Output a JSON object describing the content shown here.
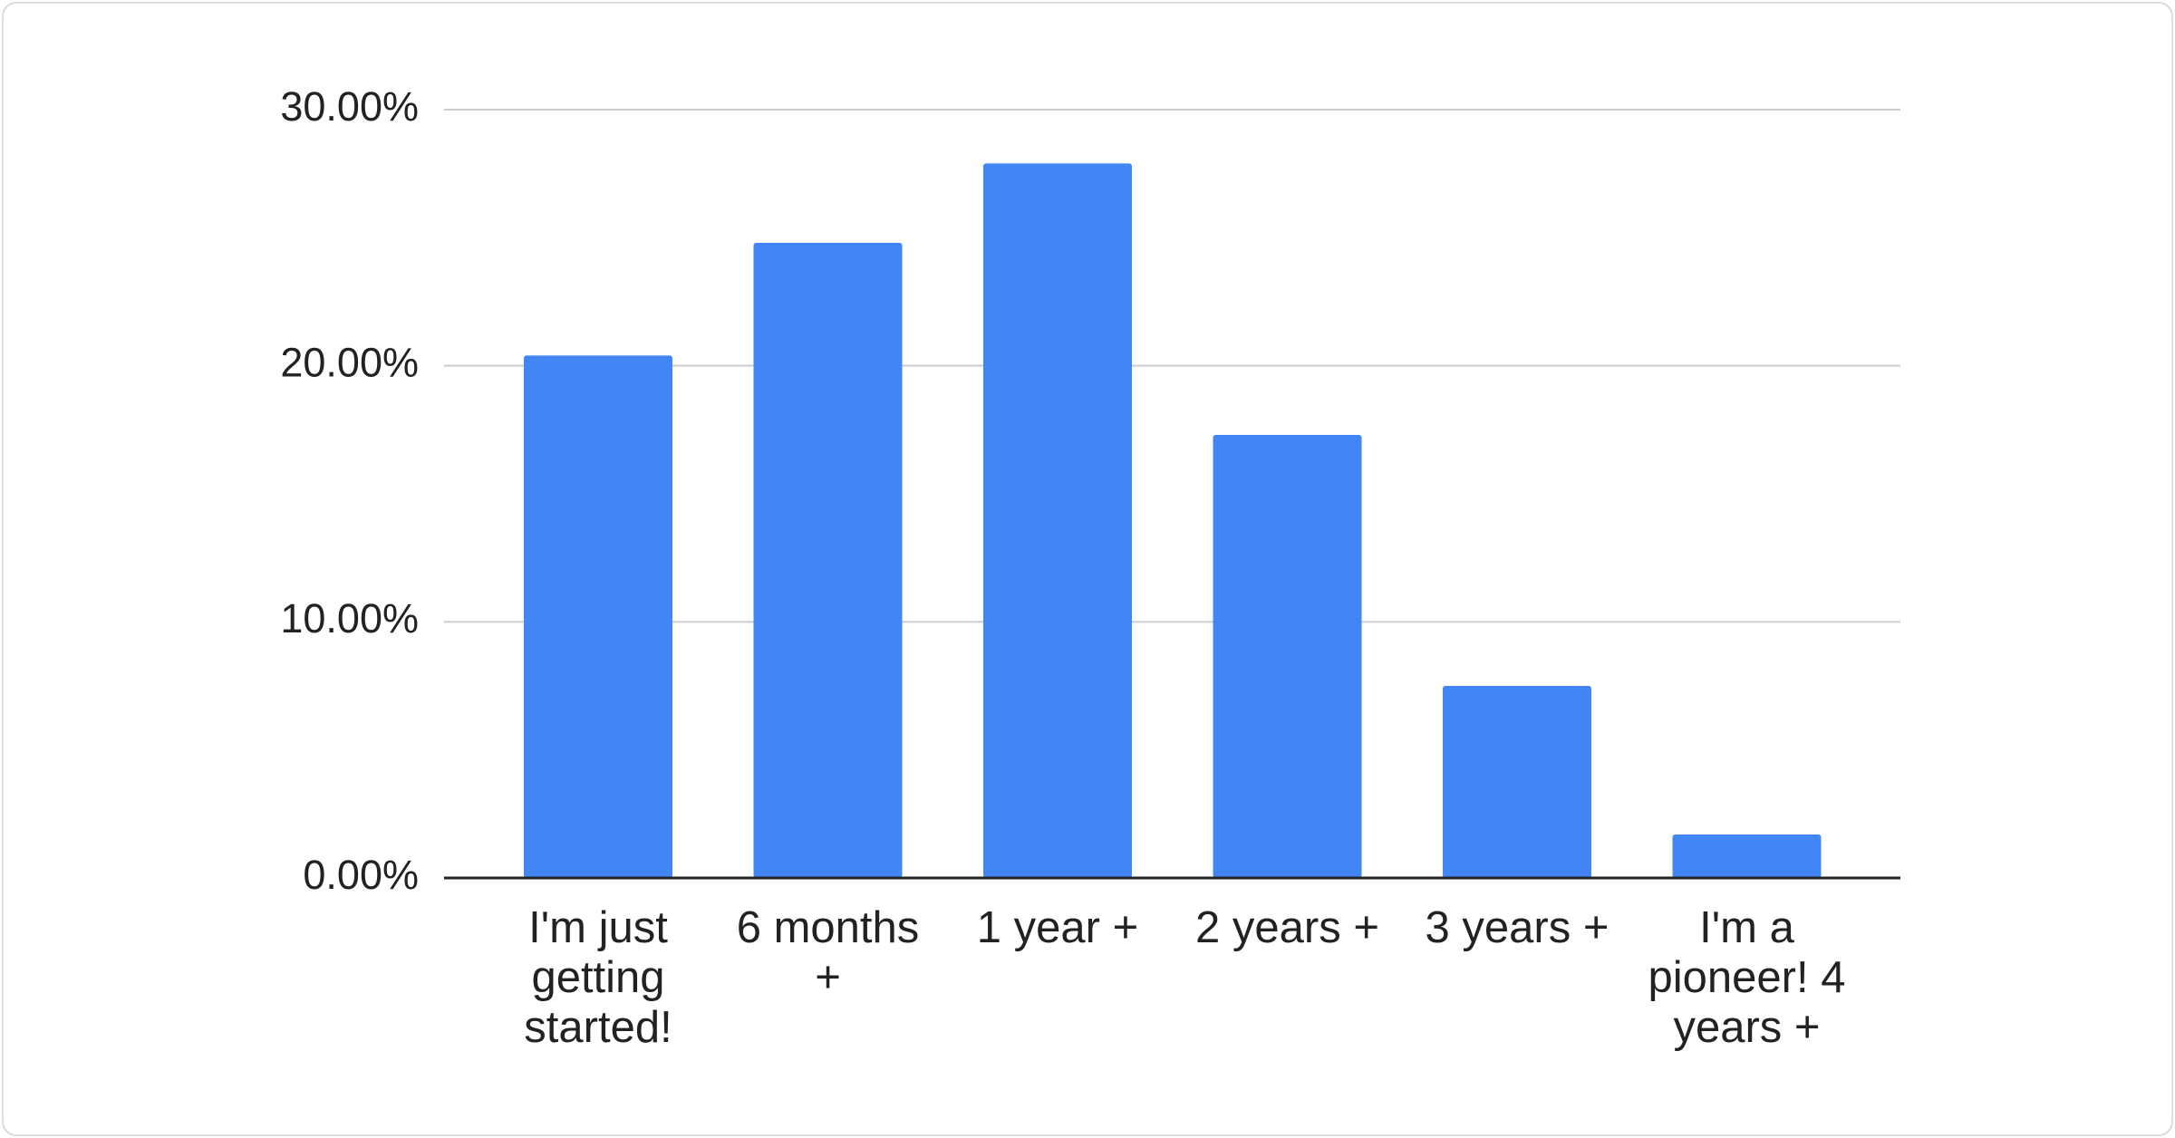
{
  "chart_data": {
    "type": "bar",
    "categories": [
      "I'm just getting started!",
      "6 months +",
      "1 year +",
      "2 years +",
      "3 years +",
      "I'm a pioneer! 4 years +"
    ],
    "values": [
      20.4,
      24.8,
      27.9,
      17.3,
      7.5,
      1.7
    ],
    "color": "#4285f4",
    "ylim": [
      0,
      30
    ],
    "yticks": [
      {
        "value": 0,
        "label": "0.00%"
      },
      {
        "value": 10,
        "label": "10.00%"
      },
      {
        "value": 20,
        "label": "20.00%"
      },
      {
        "value": 30,
        "label": "30.00%"
      }
    ],
    "grid": true
  }
}
